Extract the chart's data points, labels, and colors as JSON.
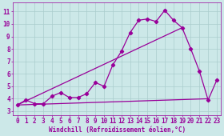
{
  "background_color": "#cce8e8",
  "grid_color": "#aacccc",
  "line_color": "#990099",
  "marker_color": "#990099",
  "xlabel": "Windchill (Refroidissement éolien,°C)",
  "xlabel_fontsize": 5.5,
  "tick_fontsize": 5.5,
  "xlim": [
    -0.5,
    23.5
  ],
  "ylim": [
    2.7,
    11.7
  ],
  "xticks": [
    0,
    1,
    2,
    3,
    4,
    5,
    6,
    7,
    8,
    9,
    10,
    11,
    12,
    13,
    14,
    15,
    16,
    17,
    18,
    19,
    20,
    21,
    22,
    23
  ],
  "yticks": [
    3,
    4,
    5,
    6,
    7,
    8,
    9,
    10,
    11
  ],
  "series": [
    {
      "x": [
        0,
        1,
        2,
        3,
        4,
        5,
        6,
        7,
        8,
        9,
        10,
        11,
        12,
        13,
        14,
        15,
        16,
        17,
        18,
        19,
        20,
        21,
        22,
        23
      ],
      "y": [
        3.5,
        3.9,
        3.6,
        3.6,
        4.2,
        4.5,
        4.1,
        4.1,
        4.4,
        5.3,
        5.0,
        6.7,
        7.8,
        9.3,
        10.3,
        10.4,
        10.2,
        11.1,
        10.3,
        9.7,
        8.0,
        6.2,
        3.9,
        5.5
      ],
      "marker": "D",
      "markersize": 2.2,
      "linewidth": 0.9
    },
    {
      "x": [
        0,
        19
      ],
      "y": [
        3.5,
        9.7
      ],
      "marker": null,
      "markersize": 0,
      "linewidth": 0.9
    },
    {
      "x": [
        0,
        22
      ],
      "y": [
        3.5,
        4.0
      ],
      "marker": null,
      "markersize": 0,
      "linewidth": 0.9
    }
  ]
}
